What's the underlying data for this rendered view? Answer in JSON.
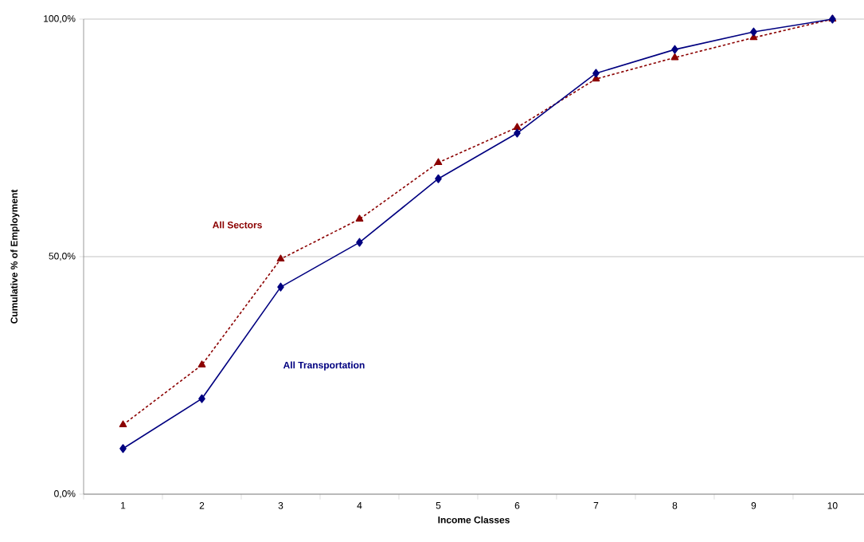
{
  "chart_data": {
    "type": "line",
    "xlabel": "Income Classes",
    "ylabel": "Cumulative % of Employment",
    "categories": [
      "1",
      "2",
      "3",
      "4",
      "5",
      "6",
      "7",
      "8",
      "9",
      "10"
    ],
    "series": [
      {
        "name": "All Transportation",
        "color": "#000080",
        "marker": "diamond",
        "line_style": "solid",
        "values": [
          9.6,
          20.1,
          43.6,
          53.0,
          66.4,
          76.0,
          88.6,
          93.6,
          97.3,
          100
        ]
      },
      {
        "name": "All Sectors",
        "color": "#8b0000",
        "marker": "triangle",
        "line_style": "dashed",
        "values": [
          14.6,
          27.2,
          49.5,
          57.9,
          69.8,
          77.2,
          87.4,
          91.9,
          96.1,
          100
        ]
      }
    ],
    "ylim": [
      0,
      100
    ],
    "yticks": [
      {
        "value": 0,
        "label": "0,0%"
      },
      {
        "value": 50,
        "label": "50,0%"
      },
      {
        "value": 100,
        "label": "100,0%"
      }
    ],
    "grid": "y",
    "legend": false
  }
}
